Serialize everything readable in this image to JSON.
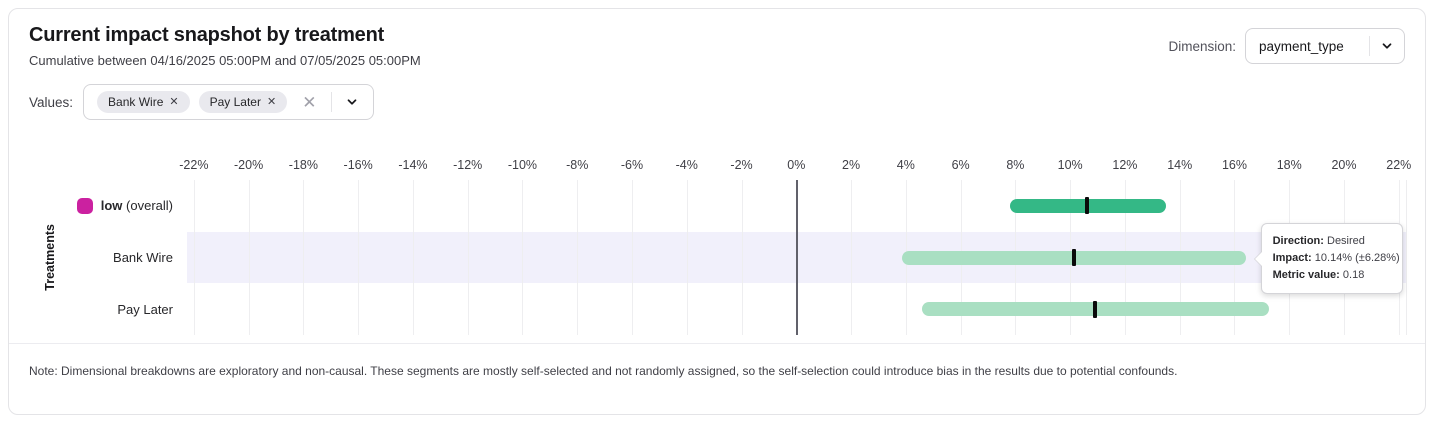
{
  "header": {
    "title": "Current impact snapshot by treatment",
    "subtitle": "Cumulative between 04/16/2025 05:00PM and 07/05/2025 05:00PM",
    "dimension_label": "Dimension:",
    "dimension_value": "payment_type"
  },
  "filters": {
    "values_label": "Values:",
    "chips": [
      {
        "label": "Bank Wire"
      },
      {
        "label": "Pay Later"
      }
    ]
  },
  "chart_data": {
    "type": "bar",
    "orientation": "horizontal",
    "title": "",
    "xlabel": "",
    "ylabel": "Treatments",
    "xlim": [
      -22,
      22
    ],
    "render_range": [
      -22.25,
      22.3
    ],
    "tick_step": 2,
    "tick_suffix": "%",
    "grid": true,
    "zero_line": true,
    "rows": [
      {
        "label": "low",
        "label_note": "(overall)",
        "impact": 10.6,
        "ci_low": 7.8,
        "ci_high": 13.5,
        "bar_color": "#34b886",
        "legend_color": "#cb21a0",
        "highlighted": false
      },
      {
        "label": "Bank Wire",
        "label_note": "",
        "impact": 10.14,
        "ci_low": 3.86,
        "ci_high": 16.42,
        "bar_color": "#a9dfc2",
        "legend_color": null,
        "highlighted": true
      },
      {
        "label": "Pay Later",
        "label_note": "",
        "impact": 10.9,
        "ci_low": 4.6,
        "ci_high": 17.25,
        "bar_color": "#a9dfc2",
        "legend_color": null,
        "highlighted": false
      }
    ],
    "marker_color": "#0a0a0a",
    "highlight_color": "#f1f0fb"
  },
  "tooltip": {
    "direction_label": "Direction:",
    "direction_value": "Desired",
    "impact_label": "Impact:",
    "impact_value": "10.14% (±6.28%)",
    "metric_label": "Metric value:",
    "metric_value": "0.18"
  },
  "note": "Note: Dimensional breakdowns are exploratory and non-causal. These segments are mostly self-selected and not randomly assigned, so the self-selection could introduce bias in the results due to potential confounds."
}
